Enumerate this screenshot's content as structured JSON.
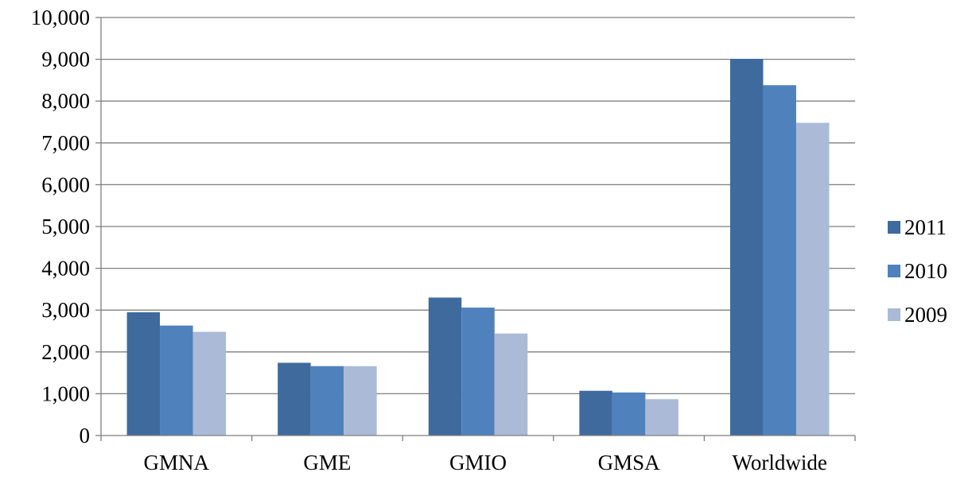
{
  "chart_data": {
    "type": "bar",
    "categories": [
      "GMNA",
      "GME",
      "GMIO",
      "GMSA",
      "Worldwide"
    ],
    "series": [
      {
        "name": "2011",
        "values": [
          2950,
          1740,
          3300,
          1070,
          9010
        ],
        "color": "#3F6A9E"
      },
      {
        "name": "2010",
        "values": [
          2630,
          1660,
          3060,
          1030,
          8380
        ],
        "color": "#4F81BD"
      },
      {
        "name": "2009",
        "values": [
          2480,
          1660,
          2440,
          870,
          7480
        ],
        "color": "#AABAD7"
      }
    ],
    "ylim": [
      0,
      10000
    ],
    "yticks": [
      "0",
      "1,000",
      "2,000",
      "3,000",
      "4,000",
      "5,000",
      "6,000",
      "7,000",
      "8,000",
      "9,000",
      "10,000"
    ],
    "grid": true,
    "legend_position": "right"
  }
}
